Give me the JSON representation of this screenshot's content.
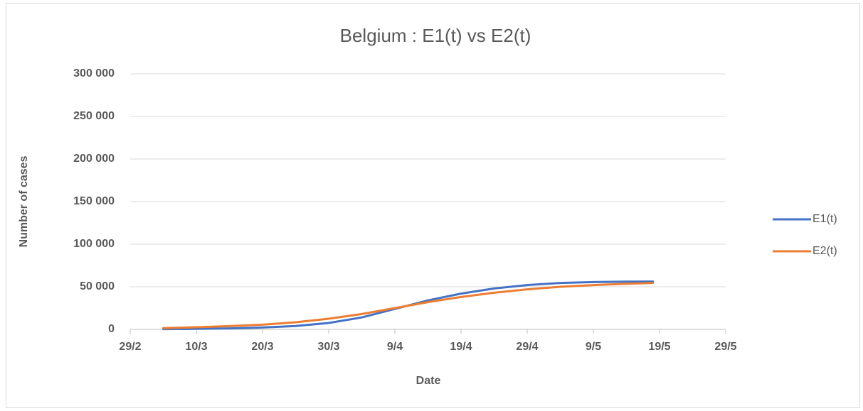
{
  "chart_data": {
    "type": "line",
    "title": "Belgium : E1(t) vs E2(t)",
    "x_label": "Date",
    "y_label": "Number of cases",
    "x": [
      "5/3",
      "10/3",
      "15/3",
      "20/3",
      "25/3",
      "30/3",
      "4/4",
      "9/4",
      "14/4",
      "19/4",
      "24/4",
      "29/4",
      "4/5",
      "9/5",
      "14/5",
      "18/5"
    ],
    "series": [
      {
        "name": "E1(t)",
        "color": "#4472c4",
        "values": [
          300,
          600,
          1200,
          2200,
          4000,
          7500,
          14000,
          24000,
          34000,
          42000,
          48000,
          52000,
          54500,
          55500,
          56000,
          56200
        ]
      },
      {
        "name": "E2(t)",
        "color": "#ed7d31",
        "values": [
          1500,
          2500,
          3800,
          5500,
          8300,
          12500,
          18000,
          25000,
          32000,
          38000,
          43000,
          47000,
          50000,
          52000,
          53500,
          54500
        ]
      }
    ],
    "xlim": [
      "29/2",
      "29/5"
    ],
    "xticks": [
      "29/2",
      "10/3",
      "20/3",
      "30/3",
      "9/4",
      "19/4",
      "29/4",
      "9/5",
      "19/5",
      "29/5"
    ],
    "ylim": [
      0,
      300000
    ],
    "yticks": [
      0,
      {
        "value": 50000,
        "label": "50 000"
      },
      {
        "value": 100000,
        "label": "100 000"
      },
      {
        "value": 150000,
        "label": "150 000"
      },
      {
        "value": 200000,
        "label": "200 000"
      },
      {
        "value": 250000,
        "label": "250 000"
      },
      {
        "value": 300000,
        "label": "300 000"
      }
    ],
    "grid": true,
    "legend": "right"
  }
}
